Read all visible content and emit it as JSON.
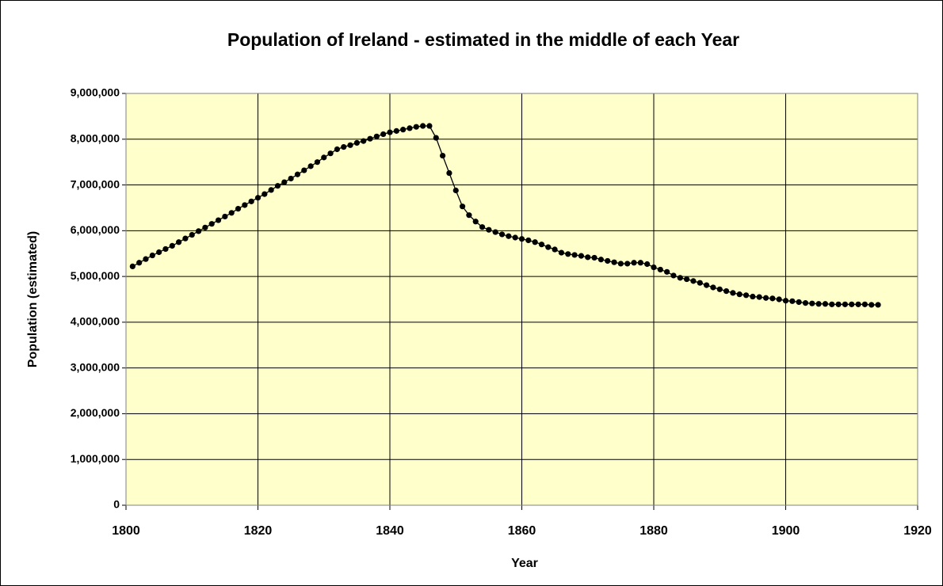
{
  "chart_data": {
    "type": "line",
    "title": "Population of Ireland - estimated in the middle of each Year",
    "x_label": "Year",
    "y_label": "Population (estimated)",
    "x": [
      1801,
      1802,
      1803,
      1804,
      1805,
      1806,
      1807,
      1808,
      1809,
      1810,
      1811,
      1812,
      1813,
      1814,
      1815,
      1816,
      1817,
      1818,
      1819,
      1820,
      1821,
      1822,
      1823,
      1824,
      1825,
      1826,
      1827,
      1828,
      1829,
      1830,
      1831,
      1832,
      1833,
      1834,
      1835,
      1836,
      1837,
      1838,
      1839,
      1840,
      1841,
      1842,
      1843,
      1844,
      1845,
      1846,
      1847,
      1848,
      1849,
      1850,
      1851,
      1852,
      1853,
      1854,
      1855,
      1856,
      1857,
      1858,
      1859,
      1860,
      1861,
      1862,
      1863,
      1864,
      1865,
      1866,
      1867,
      1868,
      1869,
      1870,
      1871,
      1872,
      1873,
      1874,
      1875,
      1876,
      1877,
      1878,
      1879,
      1880,
      1881,
      1882,
      1883,
      1884,
      1885,
      1886,
      1887,
      1888,
      1889,
      1890,
      1891,
      1892,
      1893,
      1894,
      1895,
      1896,
      1897,
      1898,
      1899,
      1900,
      1901,
      1902,
      1903,
      1904,
      1905,
      1906,
      1907,
      1908,
      1909,
      1910,
      1911,
      1912,
      1913,
      1914
    ],
    "series": [
      {
        "name": "Population",
        "color": "#000000",
        "values": [
          5220000,
          5300000,
          5380000,
          5460000,
          5530000,
          5600000,
          5670000,
          5750000,
          5830000,
          5910000,
          5990000,
          6070000,
          6150000,
          6230000,
          6310000,
          6390000,
          6480000,
          6560000,
          6640000,
          6720000,
          6800000,
          6890000,
          6980000,
          7060000,
          7140000,
          7230000,
          7320000,
          7410000,
          7500000,
          7600000,
          7690000,
          7780000,
          7830000,
          7870000,
          7920000,
          7960000,
          8010000,
          8060000,
          8110000,
          8150000,
          8180000,
          8210000,
          8240000,
          8270000,
          8290000,
          8290000,
          8030000,
          7640000,
          7260000,
          6880000,
          6530000,
          6340000,
          6200000,
          6080000,
          6020000,
          5970000,
          5920000,
          5880000,
          5850000,
          5820000,
          5790000,
          5750000,
          5700000,
          5640000,
          5590000,
          5520000,
          5490000,
          5470000,
          5450000,
          5420000,
          5410000,
          5370000,
          5340000,
          5310000,
          5280000,
          5280000,
          5300000,
          5300000,
          5270000,
          5200000,
          5150000,
          5100000,
          5020000,
          4970000,
          4940000,
          4900000,
          4860000,
          4810000,
          4760000,
          4720000,
          4680000,
          4640000,
          4610000,
          4590000,
          4560000,
          4550000,
          4530000,
          4520000,
          4500000,
          4470000,
          4460000,
          4440000,
          4420000,
          4410000,
          4400000,
          4400000,
          4390000,
          4390000,
          4390000,
          4390000,
          4390000,
          4390000,
          4380000,
          4380000
        ]
      }
    ],
    "xlim": [
      1800,
      1920
    ],
    "xticks": [
      1800,
      1820,
      1840,
      1860,
      1880,
      1900,
      1920
    ],
    "ylim": [
      0,
      9000000
    ],
    "yticks": [
      0,
      {
        "value": 1000000,
        "label": "1,000,000"
      },
      {
        "value": 2000000,
        "label": "2,000,000"
      },
      {
        "value": 3000000,
        "label": "3,000,000"
      },
      {
        "value": 4000000,
        "label": "4,000,000"
      },
      {
        "value": 5000000,
        "label": "5,000,000"
      },
      {
        "value": 6000000,
        "label": "6,000,000"
      },
      {
        "value": 7000000,
        "label": "7,000,000"
      },
      {
        "value": 8000000,
        "label": "8,000,000"
      },
      {
        "value": 9000000,
        "label": "9,000,000"
      }
    ],
    "grid": true,
    "plot_background": "#ffffcc"
  }
}
